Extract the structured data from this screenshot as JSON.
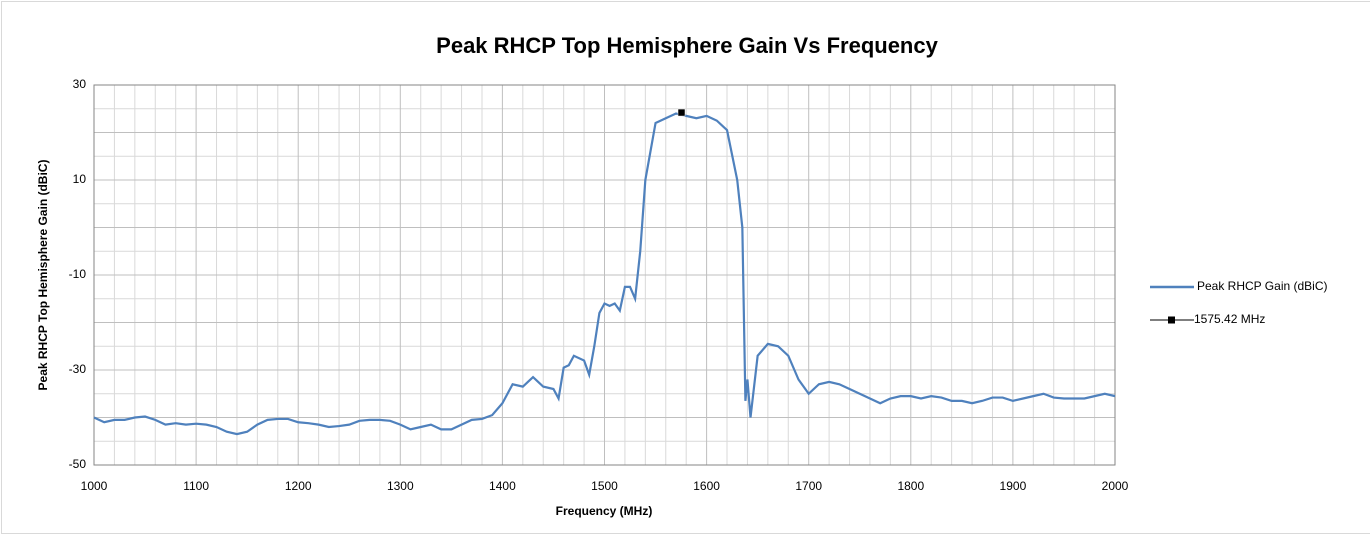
{
  "chart_data": {
    "type": "line",
    "title": "Peak RHCP Top Hemisphere Gain Vs Frequency",
    "x_label": "Frequency (MHz)",
    "y_label": "Peak RHCP Top Hemisphere Gain (dBiC)",
    "xlim": [
      1000,
      2000
    ],
    "xticks": [
      1000,
      1100,
      1200,
      1300,
      1400,
      1500,
      1600,
      1700,
      1800,
      1900,
      2000
    ],
    "ylim": [
      -50,
      30
    ],
    "yticks": [
      -50,
      -30,
      -10,
      10,
      30
    ],
    "grid": true,
    "legend": "right",
    "series": [
      {
        "name": "Peak RHCP Gain (dBiC)",
        "color": "#4f81bd",
        "x": [
          1000,
          1010,
          1020,
          1030,
          1040,
          1050,
          1060,
          1070,
          1080,
          1090,
          1100,
          1110,
          1120,
          1130,
          1140,
          1150,
          1160,
          1170,
          1180,
          1190,
          1200,
          1210,
          1220,
          1230,
          1240,
          1250,
          1260,
          1270,
          1280,
          1290,
          1300,
          1310,
          1320,
          1330,
          1340,
          1350,
          1360,
          1370,
          1380,
          1390,
          1400,
          1410,
          1420,
          1430,
          1440,
          1450,
          1455,
          1460,
          1465,
          1470,
          1480,
          1485,
          1490,
          1495,
          1500,
          1505,
          1510,
          1515,
          1520,
          1525,
          1530,
          1535,
          1540,
          1550,
          1560,
          1570,
          1580,
          1590,
          1600,
          1610,
          1620,
          1630,
          1635,
          1638,
          1640,
          1643,
          1650,
          1660,
          1670,
          1680,
          1690,
          1700,
          1710,
          1720,
          1730,
          1740,
          1750,
          1760,
          1770,
          1780,
          1790,
          1800,
          1810,
          1820,
          1830,
          1840,
          1850,
          1860,
          1870,
          1880,
          1890,
          1900,
          1910,
          1920,
          1930,
          1940,
          1950,
          1960,
          1970,
          1980,
          1990,
          2000
        ],
        "values": [
          -40,
          -41,
          -40.5,
          -40.5,
          -40,
          -39.8,
          -40.5,
          -41.5,
          -41.2,
          -41.5,
          -41.3,
          -41.5,
          -42,
          -43,
          -43.5,
          -43,
          -41.5,
          -40.5,
          -40.3,
          -40.3,
          -41,
          -41.2,
          -41.5,
          -42,
          -41.8,
          -41.5,
          -40.7,
          -40.5,
          -40.5,
          -40.7,
          -41.5,
          -42.5,
          -42,
          -41.5,
          -42.5,
          -42.5,
          -41.5,
          -40.5,
          -40.3,
          -39.5,
          -37,
          -33,
          -33.5,
          -31.5,
          -33.5,
          -34,
          -36,
          -29.5,
          -29,
          -27,
          -28,
          -31,
          -25,
          -18,
          -16,
          -16.5,
          -16,
          -17.5,
          -12.5,
          -12.5,
          -15,
          -5,
          10,
          22,
          23,
          24,
          23.5,
          23,
          23.5,
          22.5,
          20.5,
          10,
          0,
          -36.5,
          -32,
          -40,
          -27,
          -24.5,
          -25,
          -27,
          -32,
          -35,
          -33,
          -32.5,
          -33,
          -34,
          -35,
          -36,
          -37,
          -36,
          -35.5,
          -35.5,
          -36,
          -35.5,
          -35.8,
          -36.5,
          -36.5,
          -37,
          -36.5,
          -35.8,
          -35.8,
          -36.5,
          -36,
          -35.5,
          -35,
          -35.8,
          -36,
          -36,
          -36,
          -35.5,
          -35,
          -35.5
        ]
      },
      {
        "name": "1575.42 MHz",
        "color": "#000000",
        "x": [
          1575.42
        ],
        "values": [
          24.2
        ]
      }
    ]
  }
}
